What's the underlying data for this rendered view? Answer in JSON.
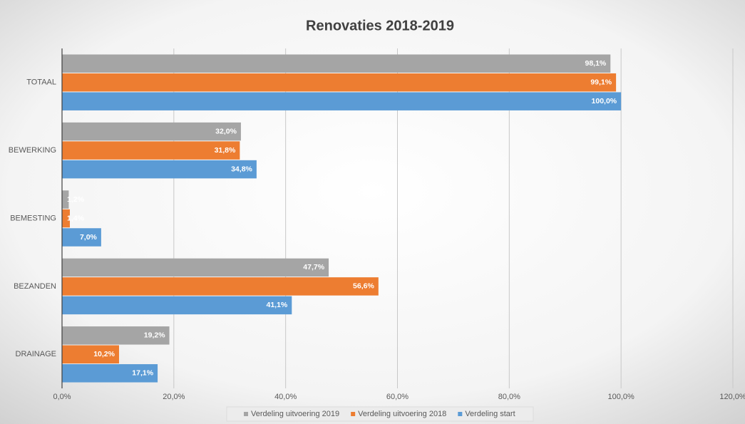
{
  "chart_data": {
    "type": "bar",
    "orientation": "horizontal",
    "title": "Renovaties 2018-2019",
    "categories": [
      "TOTAAL",
      "BEWERKING",
      "BEMESTING",
      "BEZANDEN",
      "DRAINAGE"
    ],
    "series": [
      {
        "name": "Verdeling uitvoering 2019",
        "color": "#a5a5a5",
        "values": [
          98.1,
          32.0,
          1.2,
          47.7,
          19.2
        ],
        "value_labels": [
          "98,1%",
          "32,0%",
          "1,2%",
          "47,7%",
          "19,2%"
        ]
      },
      {
        "name": "Verdeling uitvoering 2018",
        "color": "#ed7d31",
        "values": [
          99.1,
          31.8,
          1.4,
          56.6,
          10.2
        ],
        "value_labels": [
          "99,1%",
          "31,8%",
          "1,4%",
          "56,6%",
          "10,2%"
        ]
      },
      {
        "name": "Verdeling start",
        "color": "#5b9bd5",
        "values": [
          100.0,
          34.8,
          7.0,
          41.1,
          17.1
        ],
        "value_labels": [
          "100,0%",
          "34,8%",
          "7,0%",
          "41,1%",
          "17,1%"
        ]
      }
    ],
    "xlim": [
      0,
      120
    ],
    "xticks": [
      {
        "value": 0,
        "label": "0,0%"
      },
      {
        "value": 20,
        "label": "20,0%"
      },
      {
        "value": 40,
        "label": "40,0%"
      },
      {
        "value": 60,
        "label": "60,0%"
      },
      {
        "value": 80,
        "label": "80,0%"
      },
      {
        "value": 100,
        "label": "100,0%"
      },
      {
        "value": 120,
        "label": "120,0%"
      }
    ],
    "grid": true,
    "legend": "bottom"
  }
}
